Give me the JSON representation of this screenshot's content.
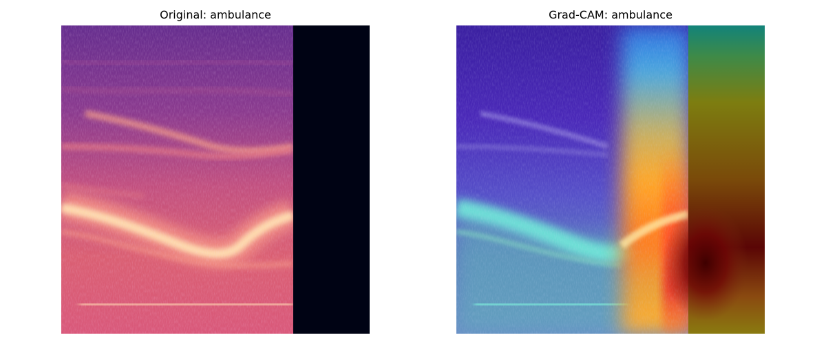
{
  "panels": [
    {
      "title": "Original: ambulance",
      "image": "mel-spectrogram"
    },
    {
      "title": "Grad-CAM: ambulance",
      "image": "grad-cam-heatmap-overlay"
    }
  ],
  "colors": {
    "spectrogram_low": "#5a2a8c",
    "spectrogram_mid": "#d45b78",
    "spectrogram_high": "#ffe3b5",
    "padding_dark": "#000314",
    "heat_hot": "#6e0000",
    "heat_warm": "#ffa020",
    "heat_cool": "#40c0e0",
    "heat_teal": "#147a72",
    "heat_olive": "#7d7d10"
  }
}
